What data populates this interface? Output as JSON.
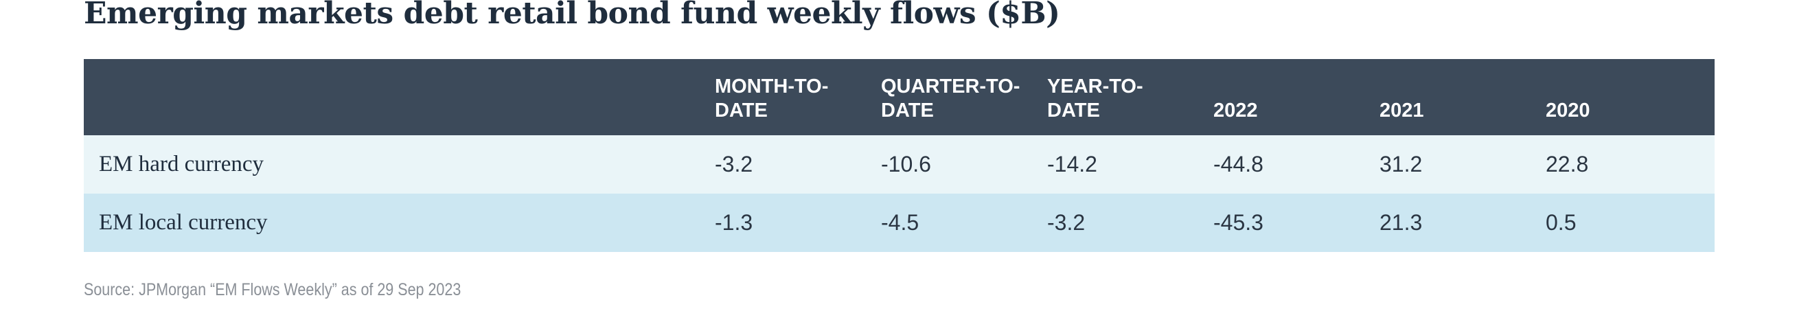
{
  "chart_data": {
    "type": "table",
    "title": "Emerging markets debt retail bond fund weekly flows ($B)",
    "columns": [
      "MONTH-TO-DATE",
      "QUARTER-TO-DATE",
      "YEAR-TO-DATE",
      "2022",
      "2021",
      "2020"
    ],
    "header_display": [
      [
        "MONTH-TO-",
        "DATE"
      ],
      [
        "QUARTER-TO-",
        "DATE"
      ],
      [
        "YEAR-TO-",
        "DATE"
      ],
      [
        "2022"
      ],
      [
        "2021"
      ],
      [
        "2020"
      ]
    ],
    "rows": [
      {
        "label": "EM hard currency",
        "cells": [
          "-3.2",
          "-10.6",
          "-14.2",
          "-44.8",
          "31.2",
          "22.8"
        ],
        "values": [
          -3.2,
          -10.6,
          -14.2,
          -44.8,
          31.2,
          22.8
        ]
      },
      {
        "label": "EM local currency",
        "cells": [
          "-1.3",
          "-4.5",
          "-3.2",
          "-45.3",
          "21.3",
          "0.5"
        ],
        "values": [
          -1.3,
          -4.5,
          -3.2,
          -45.3,
          21.3,
          0.5
        ]
      }
    ],
    "source": "Source: JPMorgan “EM Flows Weekly” as of 29 Sep 2023"
  },
  "colors": {
    "header_background": "#3c4a5a",
    "header_text": "#ffffff",
    "row_1_background": "#eaf5f8",
    "row_2_background": "#cce7f2",
    "title_text": "#1f2d3d",
    "source_text": "#8a8f96"
  }
}
